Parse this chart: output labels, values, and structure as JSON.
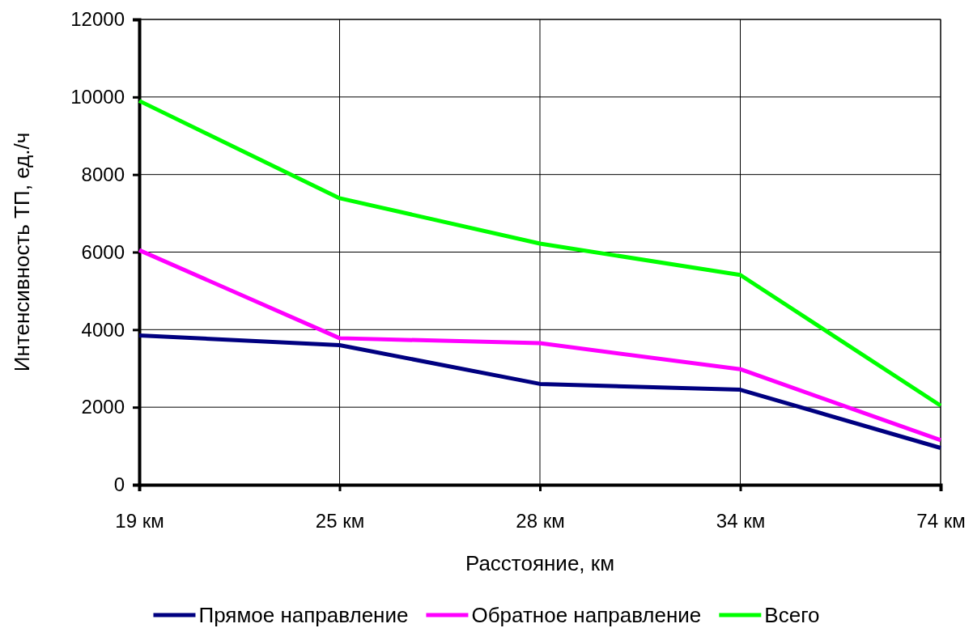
{
  "chart_data": {
    "type": "line",
    "xlabel": "Расстояние, км",
    "ylabel": "Интенсивность ТП, ед./ч",
    "categories": [
      "19 км",
      "25 км",
      "28 км",
      "34 км",
      "74 км"
    ],
    "series": [
      {
        "name": "Прямое направление",
        "color": "#000080",
        "values": [
          3850,
          3600,
          2600,
          2450,
          950
        ]
      },
      {
        "name": "Обратное направление",
        "color": "#ff00ff",
        "values": [
          6050,
          3780,
          3650,
          2980,
          1150
        ]
      },
      {
        "name": "Всего",
        "color": "#00ff00",
        "values": [
          9900,
          7390,
          6220,
          5410,
          2040
        ]
      }
    ],
    "ylim": [
      0,
      12000
    ],
    "yticks": [
      0,
      2000,
      4000,
      6000,
      8000,
      10000,
      12000
    ],
    "grid": true,
    "legend": "bottom",
    "marker": "none",
    "line_style": "solid"
  }
}
